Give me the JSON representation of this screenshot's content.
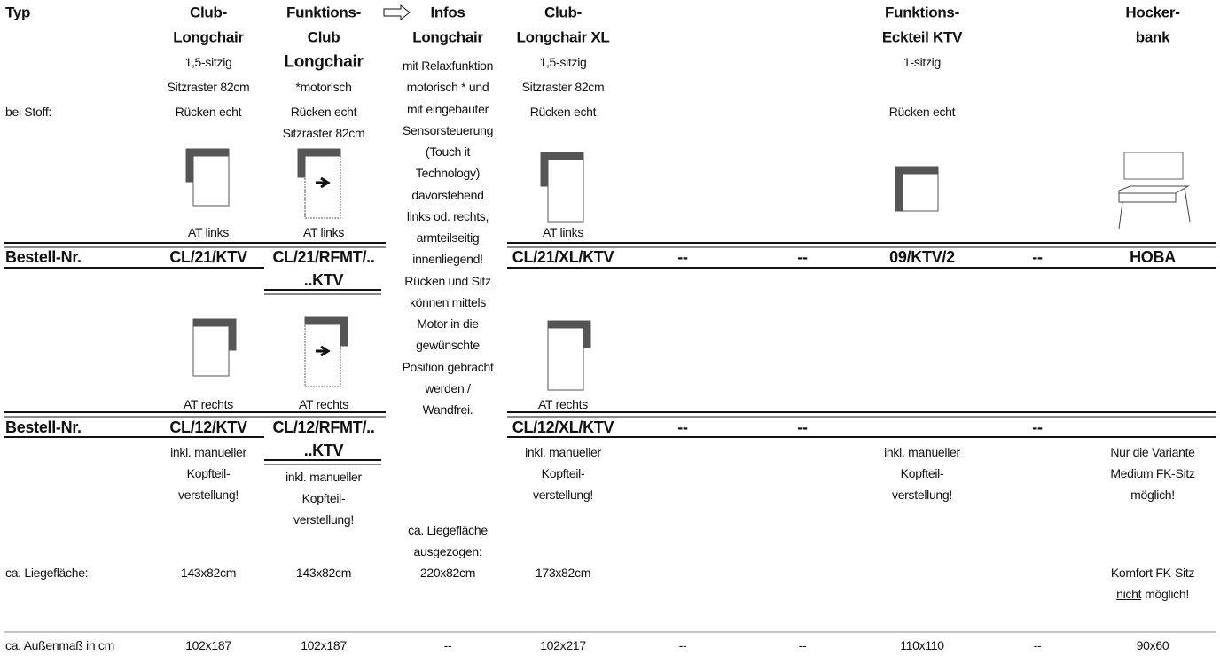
{
  "row_labels": {
    "typ": "Typ",
    "fabric": "bei Stoff:",
    "order_1": "Bestell-Nr.",
    "order_2": "Bestell-Nr.",
    "area": "ca. Liegefläche:",
    "outer": "ca. Außenmaß in cm"
  },
  "columns": [
    {
      "title": [
        "Club-",
        "Longchair"
      ],
      "details": [
        "1,5-sitzig",
        "Sitzraster 82cm",
        "Rücken echt"
      ],
      "at_left": "AT links",
      "order_left": [
        "CL/21/KTV"
      ],
      "at_right": "AT rechts",
      "order_right": [
        "CL/12/KTV"
      ],
      "note": [
        "inkl. manueller",
        "Kopfteil-",
        "verstellung!"
      ],
      "area": "143x82cm",
      "outer": "102x187"
    },
    {
      "title": [
        "Funktions-",
        "Club",
        "Longchair"
      ],
      "details": [
        "*motorisch",
        "Rücken echt",
        "Sitzraster 82cm"
      ],
      "at_left": "AT links",
      "order_left": [
        "CL/21/RFMT/..",
        "..KTV"
      ],
      "at_right": "AT rechts",
      "order_right": [
        "CL/12/RFMT/..",
        "..KTV"
      ],
      "note": [
        "inkl. manueller",
        "Kopfteil-",
        "verstellung!"
      ],
      "area": "143x82cm",
      "outer": "102x187"
    },
    {
      "title": [
        "Infos",
        "Longchair"
      ],
      "details": [
        "mit Relaxfunktion",
        "motorisch * und",
        "mit eingebauter",
        "Sensorsteuerung",
        "(Touch it",
        "Technology)",
        "davorstehend",
        "links od. rechts,",
        "armteilseitig",
        "innenliegend!",
        "Rücken und Sitz",
        "können mittels",
        "Motor in die",
        "gewünschte",
        "Position gebracht",
        "werden /",
        "Wandfrei."
      ],
      "area_label": [
        "ca. Liegefläche",
        "ausgezogen:"
      ],
      "area": "220x82cm",
      "outer": "--"
    },
    {
      "title": [
        "Club-",
        "Longchair XL"
      ],
      "details": [
        "1,5-sitzig",
        "Sitzraster 82cm",
        "Rücken echt"
      ],
      "at_left": "AT links",
      "order_left": [
        "CL/21/XL/KTV"
      ],
      "at_right": "AT rechts",
      "order_right": [
        "CL/12/XL/KTV"
      ],
      "note": [
        "inkl. manueller",
        "Kopfteil-",
        "verstellung!"
      ],
      "area": "173x82cm",
      "outer": "102x217"
    },
    {
      "order_left": [
        "--"
      ],
      "order_right": [
        "--"
      ],
      "outer": "--"
    },
    {
      "order_left": [
        "--"
      ],
      "order_right": [
        "--"
      ],
      "outer": "--"
    },
    {
      "title": [
        "Funktions-",
        "Eckteil KTV"
      ],
      "details": [
        "1-sitzig",
        "Rücken echt"
      ],
      "order_left": [
        "09/KTV/2"
      ],
      "note": [
        "inkl. manueller",
        "Kopfteil-",
        "verstellung!"
      ],
      "outer": "110x110"
    },
    {
      "order_left": [
        "--"
      ],
      "order_right": [
        "--"
      ],
      "outer": "--"
    },
    {
      "title": [
        "Hocker-",
        "bank"
      ],
      "order_left": [
        "HOBA"
      ],
      "note": [
        "Nur die Variante",
        "Medium FK-Sitz",
        "möglich!"
      ],
      "remark": "Komfort FK-Sitz",
      "remark_underlined": "nicht",
      "remark_rest": "möglich!",
      "outer": "90x60"
    }
  ]
}
